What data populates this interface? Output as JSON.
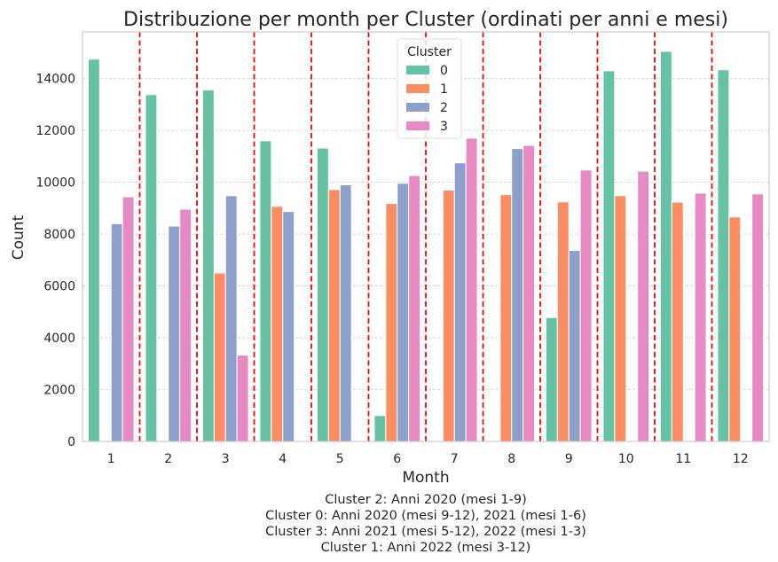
{
  "chart_data": {
    "type": "bar",
    "title": "Distribuzione per month per Cluster (ordinati per anni e mesi)",
    "xlabel": "Month",
    "ylabel": "Count",
    "categories": [
      "1",
      "2",
      "3",
      "4",
      "5",
      "6",
      "7",
      "8",
      "9",
      "10",
      "11",
      "12"
    ],
    "ylim": [
      0,
      15800
    ],
    "yticks": [
      0,
      2000,
      4000,
      6000,
      8000,
      10000,
      12000,
      14000
    ],
    "grid": "horizontal",
    "legend": {
      "title": "Cluster",
      "placement": "top-center"
    },
    "series": [
      {
        "name": "0",
        "color": "#66c2a5",
        "values": [
          14750,
          13380,
          13560,
          11600,
          11320,
          1000,
          0,
          0,
          4780,
          14300,
          15050,
          14340
        ]
      },
      {
        "name": "1",
        "color": "#fc8d62",
        "values": [
          0,
          0,
          6500,
          9070,
          9720,
          9180,
          9700,
          9520,
          9240,
          9480,
          9230,
          8660
        ]
      },
      {
        "name": "2",
        "color": "#8da0cb",
        "values": [
          8400,
          8310,
          9480,
          8870,
          9900,
          9960,
          10750,
          11300,
          7370,
          0,
          0,
          0
        ]
      },
      {
        "name": "3",
        "color": "#e78ac3",
        "values": [
          9440,
          8960,
          3330,
          0,
          0,
          10260,
          11700,
          11420,
          10470,
          10430,
          9580,
          9550
        ]
      }
    ],
    "vlines": {
      "color": "#ff0000",
      "style": "dashed",
      "between_categories": true
    },
    "annotations": [
      "Cluster 2: Anni 2020 (mesi 1-9)",
      "Cluster 0: Anni 2020 (mesi 9-12), 2021 (mesi 1-6)",
      "Cluster 3: Anni 2021 (mesi 5-12), 2022 (mesi 1-3)",
      "Cluster 1: Anni 2022 (mesi 3-12)"
    ]
  }
}
